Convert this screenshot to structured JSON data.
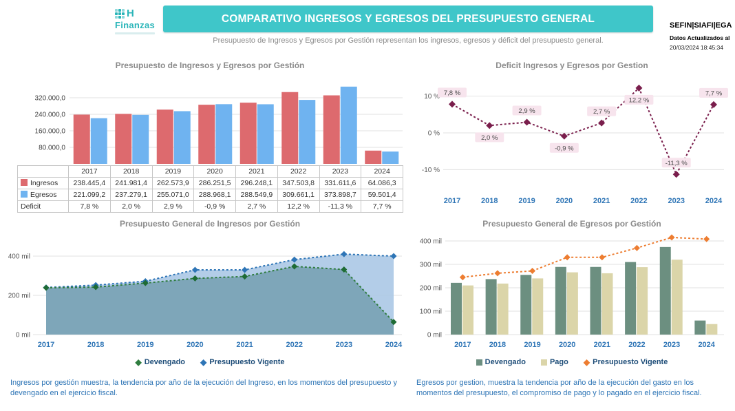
{
  "header": {
    "logo": {
      "mark": "H",
      "name": "Finanzas"
    },
    "banner_title": "COMPARATIVO INGRESOS Y EGRESOS DEL PRESUPUESTO GENERAL",
    "subtitle": "Presupuesto de Ingresos y Egresos por Gestión representan los ingresos, egresos y déficit del presupuesto general.",
    "brand": "SEFIN|SIAFI|EGA",
    "updated_label": "Datos Actualizados al",
    "updated_value": "20/03/2024 18:45:34"
  },
  "chart_data": [
    {
      "id": "ingresos-egresos-bars",
      "type": "bar",
      "title": "Presupuesto de Ingresos y Egresos por Gestión",
      "categories": [
        "2017",
        "2018",
        "2019",
        "2020",
        "2021",
        "2022",
        "2023",
        "2024"
      ],
      "series": [
        {
          "name": "Ingresos",
          "color": "#dd6a6e",
          "values": [
            238445.4,
            241981.4,
            262573.9,
            286251.5,
            296248.1,
            347503.8,
            331611.6,
            64086.3
          ]
        },
        {
          "name": "Egresos",
          "color": "#6fb3f0",
          "values": [
            221099.2,
            237279.1,
            255071.0,
            288968.1,
            288549.9,
            309661.1,
            373898.7,
            59501.4
          ]
        }
      ],
      "ylim": [
        0,
        400000
      ],
      "grid": true,
      "y_ticks": [
        {
          "label": "80.000,0",
          "value": 80000
        },
        {
          "label": "160.000,0",
          "value": 160000
        },
        {
          "label": "240.000,0",
          "value": 240000
        },
        {
          "label": "320.000,0",
          "value": 320000
        }
      ],
      "table": {
        "rows": [
          {
            "label": "Ingresos",
            "swatch": "#dd6a6e",
            "cells": [
              "238.445,4",
              "241.981,4",
              "262.573,9",
              "286.251,5",
              "296.248,1",
              "347.503,8",
              "331.611,6",
              "64.086,3"
            ]
          },
          {
            "label": "Egresos",
            "swatch": "#6fb3f0",
            "cells": [
              "221.099,2",
              "237.279,1",
              "255.071,0",
              "288.968,1",
              "288.549,9",
              "309.661,1",
              "373.898,7",
              "59.501,4"
            ]
          },
          {
            "label": "Deficit",
            "swatch": null,
            "cells": [
              "7,8 %",
              "2,0 %",
              "2,9 %",
              "-0,9 %",
              "2,7 %",
              "12,2 %",
              "-11,3 %",
              "7,7 %"
            ]
          }
        ]
      }
    },
    {
      "id": "deficit-line",
      "type": "line",
      "title": "Deficit Ingresos y Egresos por Gestion",
      "categories": [
        "2017",
        "2018",
        "2019",
        "2020",
        "2021",
        "2022",
        "2023",
        "2024"
      ],
      "values": [
        7.8,
        2.0,
        2.9,
        -0.9,
        2.7,
        12.2,
        -11.3,
        7.7
      ],
      "labels": [
        "7,8 %",
        "2,0 %",
        "2,9 %",
        "-0,9 %",
        "2,7 %",
        "12,2 %",
        "-11,3 %",
        "7,7 %"
      ],
      "ylim": [
        -15,
        15
      ],
      "grid": true,
      "y_ticks": [
        {
          "label": "10 %",
          "value": 10
        },
        {
          "label": "0 %",
          "value": 0
        },
        {
          "label": "-10 %",
          "value": -10
        }
      ],
      "line_color": "#7a1e4c",
      "label_bg": "#f7e4ed"
    },
    {
      "id": "ingresos-area",
      "type": "area",
      "title": "Presupuesto General de Ingresos por Gestión",
      "categories": [
        "2017",
        "2018",
        "2019",
        "2020",
        "2021",
        "2022",
        "2023",
        "2024"
      ],
      "unit": "mil",
      "series": [
        {
          "name": "Devengado",
          "color": "#2f7d3f",
          "marker_color": "#1e6b34",
          "fill": "#7ba3b6",
          "values": [
            238.4,
            242.0,
            262.6,
            286.3,
            296.2,
            347.5,
            331.6,
            64.1
          ]
        },
        {
          "name": "Presupuesto Vigente",
          "color": "#2e75b6",
          "marker_color": "#2e75b6",
          "fill": "#abc8e5",
          "values": [
            240,
            252,
            272,
            330,
            330,
            382,
            410,
            400
          ]
        }
      ],
      "ylim": [
        0,
        490
      ],
      "grid": true,
      "y_ticks": [
        {
          "label": "0 mil",
          "value": 0
        },
        {
          "label": "200 mil",
          "value": 200
        },
        {
          "label": "400 mil",
          "value": 400
        }
      ]
    },
    {
      "id": "egresos-bars-line",
      "type": "bar",
      "title": "Presupuesto General de Egresos por Gestión",
      "categories": [
        "2017",
        "2018",
        "2019",
        "2020",
        "2021",
        "2022",
        "2023",
        "2024"
      ],
      "unit": "mil",
      "series": [
        {
          "name": "Devengado",
          "kind": "bar",
          "color": "#6c8f80",
          "values": [
            221,
            237,
            255,
            289,
            289,
            310,
            374,
            60
          ]
        },
        {
          "name": "Pago",
          "kind": "bar",
          "color": "#dbd5a9",
          "values": [
            210,
            218,
            240,
            266,
            262,
            288,
            320,
            45
          ]
        },
        {
          "name": "Presupuesto Vigente",
          "kind": "line",
          "color": "#ed7d31",
          "values": [
            245,
            262,
            272,
            330,
            330,
            370,
            415,
            408
          ]
        }
      ],
      "ylim": [
        0,
        430
      ],
      "grid": true,
      "y_ticks": [
        {
          "label": "0 mil",
          "value": 0
        },
        {
          "label": "100 mil",
          "value": 100
        },
        {
          "label": "200 mil",
          "value": 200
        },
        {
          "label": "300 mil",
          "value": 300
        },
        {
          "label": "400 mil",
          "value": 400
        }
      ]
    }
  ],
  "footnotes": {
    "left": "Ingresos por gestión muestra, la tendencia por año de la ejecución del Ingreso, en los momentos del presupuesto y devengado en el ejercicio fiscal.",
    "right": "Egresos por gestion, muestra la tendencia por año de la ejecución del gasto en los momentos del presupuesto, el compromiso de pago y lo pagado en el ejercicio fiscal."
  },
  "colors": {
    "banner": "#3fc6c9",
    "axis_year": "#2e75b6",
    "legend_text": "#1f4e79",
    "footnote": "#2e75b6"
  }
}
